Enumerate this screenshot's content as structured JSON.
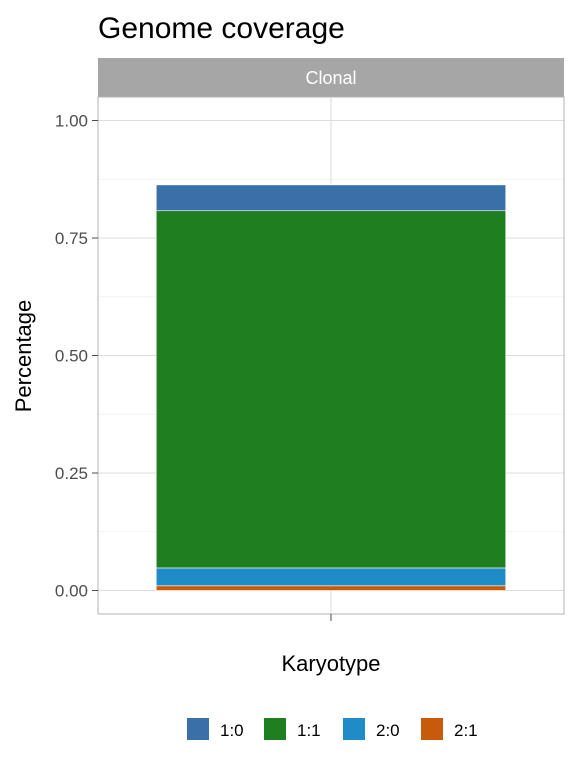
{
  "chart_data": {
    "type": "bar",
    "stacked": true,
    "title": "Genome coverage",
    "facet": "Clonal",
    "xlabel": "Karyotype",
    "ylabel": "Percentage",
    "categories": [
      ""
    ],
    "ylim": [
      -0.05,
      1.05
    ],
    "yticks": [
      "0.00",
      "0.25",
      "0.50",
      "0.75",
      "1.00"
    ],
    "ytick_values": [
      0,
      0.25,
      0.5,
      0.75,
      1.0
    ],
    "grid": true,
    "legend_position": "bottom",
    "series": [
      {
        "name": "2:1",
        "color": "#C75A0B",
        "values": [
          0.01
        ]
      },
      {
        "name": "2:0",
        "color": "#1F8CC7",
        "values": [
          0.038
        ]
      },
      {
        "name": "1:1",
        "color": "#1F7E1F",
        "values": [
          0.76
        ]
      },
      {
        "name": "1:0",
        "color": "#3A6FA8",
        "values": [
          0.055
        ]
      }
    ],
    "legend_order": [
      "1:0",
      "1:1",
      "2:0",
      "2:1"
    ]
  }
}
